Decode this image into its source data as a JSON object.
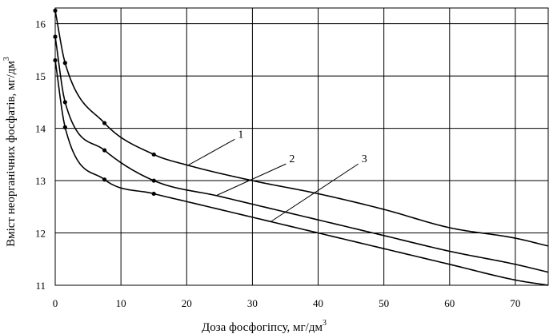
{
  "chart_data": {
    "type": "line",
    "xlabel": "Доза фосфогіпсу, мг/дм",
    "xlabel_unit_superscript": "3",
    "ylabel": "Вміст неорганічних фосфатів, мг/дм",
    "ylabel_unit_superscript": "3",
    "xlim": [
      0,
      75
    ],
    "ylim": [
      11,
      16.3
    ],
    "x_ticks": [
      0,
      10,
      20,
      30,
      40,
      50,
      60,
      70
    ],
    "x_tick_labels": [
      "0",
      "10",
      "20",
      "30",
      "40",
      "50",
      "60",
      "70"
    ],
    "y_ticks": [
      11,
      12,
      13,
      14,
      15,
      16
    ],
    "y_tick_labels": [
      "11",
      "12",
      "13",
      "14",
      "15",
      "16"
    ],
    "grid": true,
    "legend": "none",
    "series": [
      {
        "label": "1",
        "color": "#000000",
        "points": [
          [
            0,
            16.25
          ],
          [
            1.5,
            15.25
          ],
          [
            7.5,
            14.1
          ],
          [
            15,
            13.5
          ],
          [
            20,
            13.3
          ],
          [
            30,
            13.0
          ],
          [
            40,
            12.75
          ],
          [
            50,
            12.45
          ],
          [
            60,
            12.1
          ],
          [
            70,
            11.9
          ],
          [
            75,
            11.75
          ]
        ],
        "markers_x": [
          0,
          1.5,
          7.5,
          15
        ]
      },
      {
        "label": "2",
        "color": "#000000",
        "points": [
          [
            0,
            15.75
          ],
          [
            1.5,
            14.5
          ],
          [
            7.5,
            13.58
          ],
          [
            15,
            13.0
          ],
          [
            25,
            12.7
          ],
          [
            30,
            12.55
          ],
          [
            40,
            12.25
          ],
          [
            50,
            11.95
          ],
          [
            60,
            11.65
          ],
          [
            70,
            11.4
          ],
          [
            75,
            11.25
          ]
        ],
        "markers_x": [
          0,
          1.5,
          7.5,
          15
        ]
      },
      {
        "label": "3",
        "color": "#000000",
        "points": [
          [
            0,
            15.3
          ],
          [
            1.5,
            14.02
          ],
          [
            7.5,
            13.02
          ],
          [
            15,
            12.75
          ],
          [
            20,
            12.6
          ],
          [
            30,
            12.3
          ],
          [
            40,
            12.0
          ],
          [
            50,
            11.7
          ],
          [
            60,
            11.4
          ],
          [
            70,
            11.1
          ],
          [
            75,
            11.0
          ]
        ],
        "markers_x": [
          0,
          1.5,
          7.5,
          15
        ]
      }
    ],
    "annotations": [
      {
        "text": "1",
        "series": "1",
        "at_x": 20.2,
        "label_at": [
          27.8,
          13.82
        ]
      },
      {
        "text": "2",
        "series": "2",
        "at_x": 24.5,
        "label_at": [
          35.6,
          13.35
        ]
      },
      {
        "text": "3",
        "series": "3",
        "at_x": 32.8,
        "label_at": [
          46.6,
          13.35
        ]
      }
    ]
  }
}
